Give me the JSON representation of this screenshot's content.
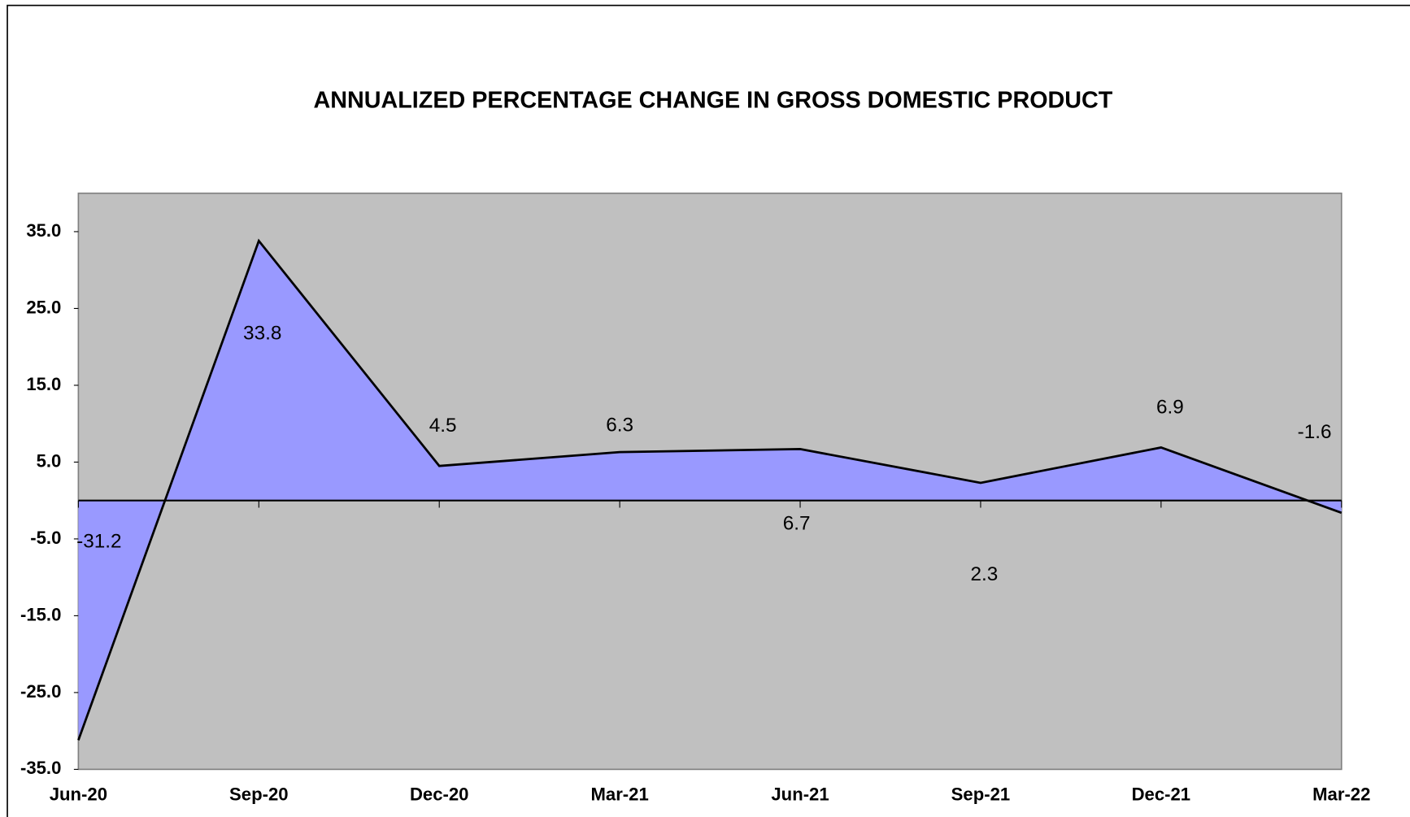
{
  "chart_data": {
    "type": "area",
    "title": "ANNUALIZED  PERCENTAGE CHANGE IN GROSS DOMESTIC PRODUCT",
    "categories": [
      "Jun-20",
      "Sep-20",
      "Dec-20",
      "Mar-21",
      "Jun-21",
      "Sep-21",
      "Dec-21",
      "Mar-22"
    ],
    "values": [
      -31.2,
      33.8,
      4.5,
      6.3,
      6.7,
      2.3,
      6.9,
      -1.6
    ],
    "color": "#9999ff",
    "line_color": "#000000",
    "plot_background": "#c0c0c0",
    "ylim": [
      -35,
      40
    ],
    "yticks": [
      {
        "value": 35,
        "label": "35.0"
      },
      {
        "value": 25,
        "label": "25.0"
      },
      {
        "value": 15,
        "label": "15.0"
      },
      {
        "value": 5,
        "label": "5.0"
      },
      {
        "value": -5,
        "label": "-5.0"
      },
      {
        "value": -15,
        "label": "-15.0"
      },
      {
        "value": -25,
        "label": "-25.0"
      },
      {
        "value": -35,
        "label": "-35.0"
      }
    ],
    "grid": false
  }
}
